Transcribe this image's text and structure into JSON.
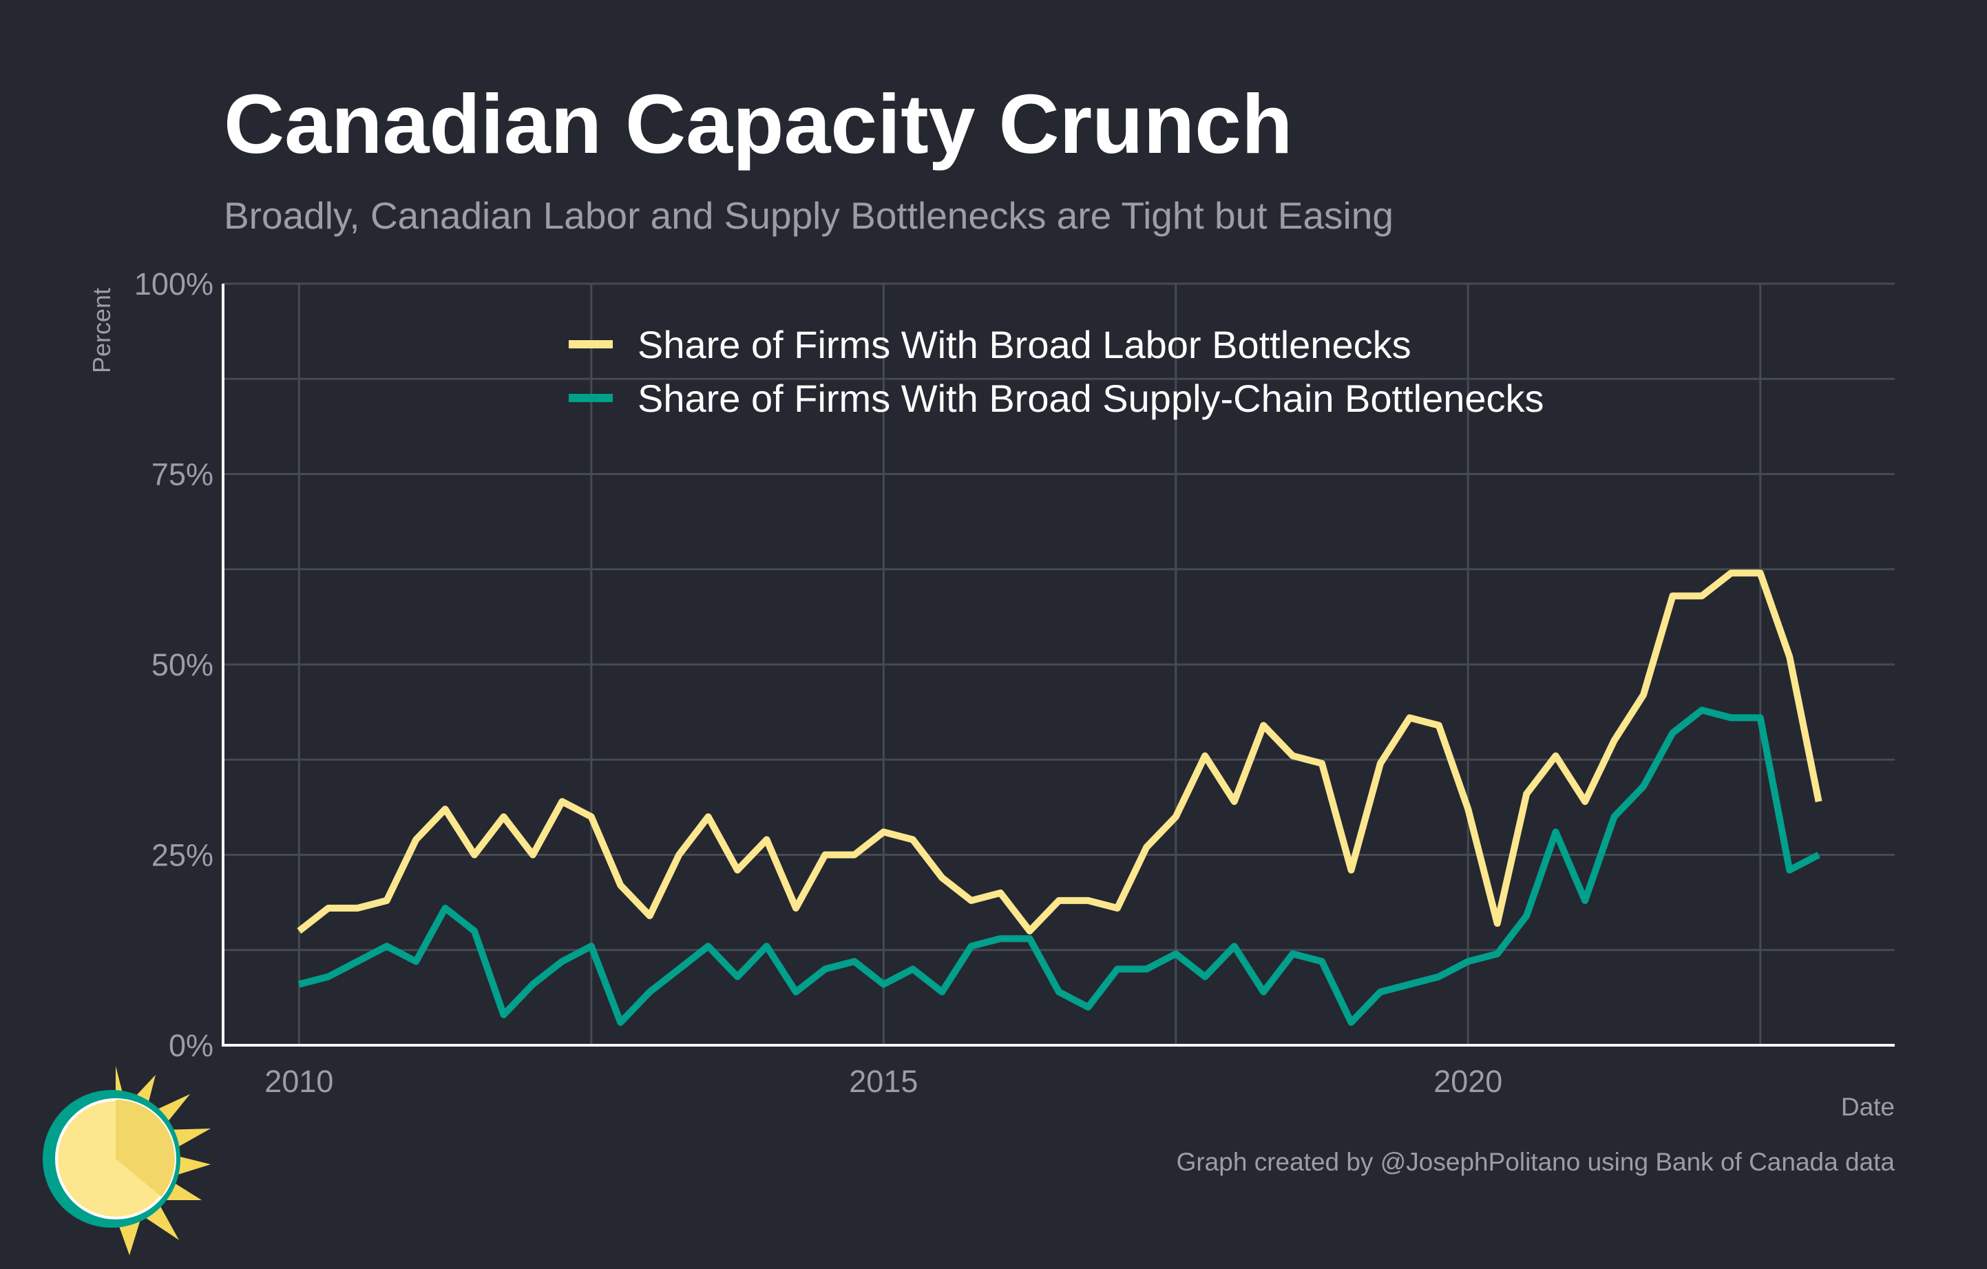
{
  "title": "Canadian Capacity Crunch",
  "subtitle": "Broadly, Canadian Labor and Supply Bottlenecks are Tight but Easing",
  "caption": "Graph created by @JosephPolitano using Bank of Canada data",
  "colors": {
    "background": "#252830",
    "grid": "#454a53",
    "axis": "#ffffff",
    "labor": "#fce78f",
    "supply": "#00a08c"
  },
  "logo": {
    "icon": "sun-icon"
  },
  "chart_data": {
    "type": "line",
    "title": "Canadian Capacity Crunch",
    "subtitle": "Broadly, Canadian Labor and Supply Bottlenecks are Tight but Easing",
    "xlabel": "Date",
    "ylabel": "Percent",
    "xlim": [
      2009.35,
      2023.65
    ],
    "ylim": [
      0,
      100
    ],
    "x_ticks": [
      {
        "value": 2010,
        "label": "2010"
      },
      {
        "value": 2015,
        "label": "2015"
      },
      {
        "value": 2020,
        "label": "2020"
      }
    ],
    "y_ticks": [
      {
        "value": 0,
        "label": "0%"
      },
      {
        "value": 25,
        "label": "25%"
      },
      {
        "value": 50,
        "label": "50%"
      },
      {
        "value": 75,
        "label": "75%"
      },
      {
        "value": 100,
        "label": "100%"
      }
    ],
    "minor_y": [
      12.5,
      37.5,
      62.5,
      87.5
    ],
    "minor_x": [
      2012.5,
      2017.5,
      2022.5
    ],
    "grid": true,
    "legend_position": "top-center",
    "x": [
      2010.0,
      2010.25,
      2010.5,
      2010.75,
      2011.0,
      2011.25,
      2011.5,
      2011.75,
      2012.0,
      2012.25,
      2012.5,
      2012.75,
      2013.0,
      2013.25,
      2013.5,
      2013.75,
      2014.0,
      2014.25,
      2014.5,
      2014.75,
      2015.0,
      2015.25,
      2015.5,
      2015.75,
      2016.0,
      2016.25,
      2016.5,
      2016.75,
      2017.0,
      2017.25,
      2017.5,
      2017.75,
      2018.0,
      2018.25,
      2018.5,
      2018.75,
      2019.0,
      2019.25,
      2019.5,
      2019.75,
      2020.0,
      2020.25,
      2020.5,
      2020.75,
      2021.0,
      2021.25,
      2021.5,
      2021.75,
      2022.0,
      2022.25,
      2022.5,
      2022.75,
      2023.0
    ],
    "series": [
      {
        "name": "Share of Firms With Broad Labor Bottlenecks",
        "color": "#fce78f",
        "values": [
          15,
          18,
          18,
          19,
          27,
          31,
          25,
          30,
          25,
          32,
          30,
          21,
          17,
          25,
          30,
          23,
          27,
          18,
          25,
          25,
          28,
          27,
          22,
          19,
          20,
          15,
          19,
          19,
          18,
          26,
          30,
          38,
          32,
          42,
          38,
          37,
          23,
          37,
          43,
          42,
          31,
          16,
          33,
          38,
          32,
          40,
          46,
          59,
          59,
          62,
          62,
          51,
          32
        ]
      },
      {
        "name": "Share of Firms With Broad Supply-Chain Bottlenecks",
        "color": "#00a08c",
        "values": [
          8,
          9,
          11,
          13,
          11,
          18,
          15,
          4,
          8,
          11,
          13,
          3,
          7,
          10,
          13,
          9,
          13,
          7,
          10,
          11,
          8,
          10,
          7,
          13,
          14,
          14,
          7,
          5,
          10,
          10,
          12,
          9,
          13,
          7,
          12,
          11,
          3,
          7,
          8,
          9,
          11,
          12,
          17,
          28,
          19,
          30,
          34,
          41,
          44,
          43,
          43,
          23,
          25
        ]
      }
    ]
  }
}
